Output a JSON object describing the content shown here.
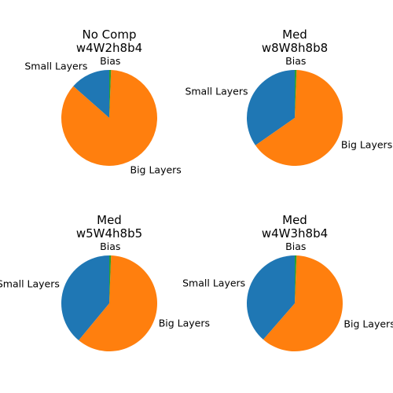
{
  "chart_data": [
    {
      "type": "pie",
      "title_line1": "No Comp",
      "title_line2": "w4W2h8b4",
      "labels": [
        "Small Layers",
        "Big Layers",
        "Bias"
      ],
      "values": [
        13.5,
        85.9,
        0.6
      ],
      "colors": [
        "#1f77b4",
        "#ff7f0e",
        "#2ca02c"
      ]
    },
    {
      "type": "pie",
      "title_line1": "Med",
      "title_line2": "w8W8h8b8",
      "labels": [
        "Small Layers",
        "Big Layers",
        "Bias"
      ],
      "values": [
        34.7,
        64.7,
        0.6
      ],
      "colors": [
        "#1f77b4",
        "#ff7f0e",
        "#2ca02c"
      ]
    },
    {
      "type": "pie",
      "title_line1": "Med",
      "title_line2": "w5W4h8b5",
      "labels": [
        "Small Layers",
        "Big Layers",
        "Bias"
      ],
      "values": [
        39.0,
        60.4,
        0.6
      ],
      "colors": [
        "#1f77b4",
        "#ff7f0e",
        "#2ca02c"
      ]
    },
    {
      "type": "pie",
      "title_line1": "Med",
      "title_line2": "w4W3h8b4",
      "labels": [
        "Small Layers",
        "Big Layers",
        "Bias"
      ],
      "values": [
        38.6,
        60.8,
        0.6
      ],
      "colors": [
        "#1f77b4",
        "#ff7f0e",
        "#2ca02c"
      ]
    }
  ]
}
